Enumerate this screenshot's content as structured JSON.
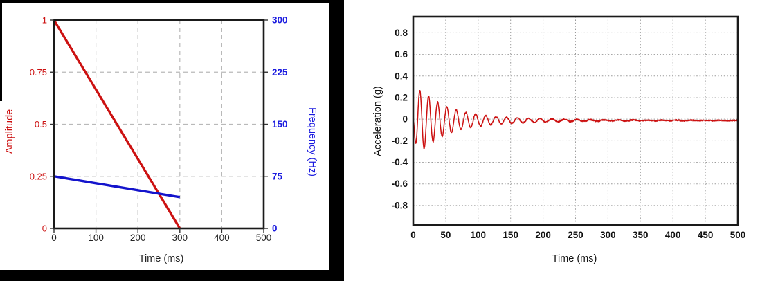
{
  "page": {
    "background": "#ffffff"
  },
  "colors": {
    "amplitude_red": "#cc1111",
    "frequency_blue": "#1414cc",
    "frequency_label_blue": "#1b1bdf",
    "acceleration_red": "#cc1111",
    "frame_black": "#1a1a1a",
    "grid_dashed_gray": "#b9b9b9",
    "grid_dotted_gray": "#9a9a9a",
    "left_figure_matte": "#000000"
  },
  "chart_data": [
    {
      "type": "line",
      "title": "",
      "xlabel": "Time (ms)",
      "xlim": [
        0,
        500
      ],
      "xticks": [
        0,
        100,
        200,
        300,
        400,
        500
      ],
      "grid": "dashed",
      "legend": "none",
      "tick_label_colors": {
        "x": "#222222",
        "left": "#cc1111",
        "right": "#1b1bdf"
      },
      "series": [
        {
          "name": "Amplitude",
          "axis": "left",
          "ylabel": "Amplitude",
          "color": "#cc1111",
          "ylim": [
            0,
            1
          ],
          "yticks": [
            0,
            0.25,
            0.5,
            0.75,
            1
          ],
          "points": [
            [
              0,
              1
            ],
            [
              300,
              0
            ]
          ]
        },
        {
          "name": "Frequency",
          "axis": "right",
          "ylabel": "Frequency (Hz)",
          "color": "#1414cc",
          "ylim": [
            0,
            300
          ],
          "yticks": [
            0,
            75,
            150,
            225,
            300
          ],
          "points": [
            [
              0,
              75
            ],
            [
              300,
              45
            ]
          ]
        }
      ]
    },
    {
      "type": "line",
      "title": "",
      "xlabel": "Time (ms)",
      "ylabel": "Acceleration (g)",
      "xlim": [
        0,
        500
      ],
      "ylim": [
        -0.98,
        0.95
      ],
      "xticks": [
        0,
        50,
        100,
        150,
        200,
        250,
        300,
        350,
        400,
        450,
        500
      ],
      "yticks": [
        0.8,
        0.6,
        0.4,
        0.2,
        0,
        -0.2,
        -0.4,
        -0.6,
        -0.8
      ],
      "grid": "dotted",
      "legend": "none",
      "series": [
        {
          "name": "Acceleration",
          "color": "#cc1111",
          "signal": {
            "form": "damped_chirp",
            "start_freq_hz": 75,
            "end_freq_hz": 45,
            "sweep_end_ms": 300,
            "envelope": [
              {
                "a": 0.32,
                "tau_ms": 40
              },
              {
                "a": 0.06,
                "tau_ms": 130
              }
            ],
            "attack_tau_ms": 4,
            "baseline_g": -0.012,
            "noise_g": 0.006,
            "observed_peak_g": 0.27,
            "observed_peak_ms": 10,
            "observed_trough_g": -0.29,
            "observed_trough_ms": 16,
            "duration_ms": 500,
            "sample_step_ms": 0.4
          }
        }
      ]
    }
  ]
}
